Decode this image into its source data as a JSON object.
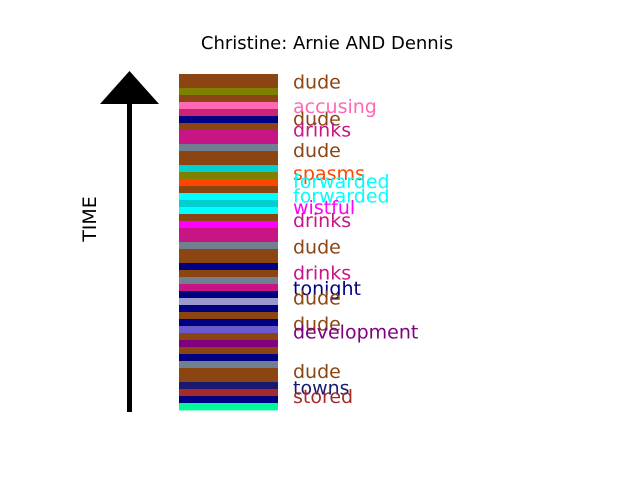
{
  "chart_data": {
    "type": "bar",
    "title": "Christine: Arnie AND Dennis",
    "ylabel": "TIME",
    "stripes": [
      {
        "color": "#8B4513"
      },
      {
        "color": "#8B4513"
      },
      {
        "color": "#808000"
      },
      {
        "color": "#8B4513"
      },
      {
        "color": "#FF69B4"
      },
      {
        "color": "#CC2277"
      },
      {
        "color": "#000080"
      },
      {
        "color": "#8B4513"
      },
      {
        "color": "#C71585"
      },
      {
        "color": "#C71585"
      },
      {
        "color": "#708090"
      },
      {
        "color": "#8B4513"
      },
      {
        "color": "#8B4513"
      },
      {
        "color": "#00CED1"
      },
      {
        "color": "#808000"
      },
      {
        "color": "#FF4500"
      },
      {
        "color": "#8B4513"
      },
      {
        "color": "#00FFFF"
      },
      {
        "color": "#00CED1"
      },
      {
        "color": "#00FFFF"
      },
      {
        "color": "#8B4513"
      },
      {
        "color": "#FF00FF"
      },
      {
        "color": "#C71585"
      },
      {
        "color": "#C71585"
      },
      {
        "color": "#708090"
      },
      {
        "color": "#8B4513"
      },
      {
        "color": "#8B4513"
      },
      {
        "color": "#000080"
      },
      {
        "color": "#8B4513"
      },
      {
        "color": "#708090"
      },
      {
        "color": "#C71585"
      },
      {
        "color": "#000080"
      },
      {
        "color": "#9999CC"
      },
      {
        "color": "#000080"
      },
      {
        "color": "#8B4513"
      },
      {
        "color": "#000080"
      },
      {
        "color": "#6A5ACD"
      },
      {
        "color": "#8B4513"
      },
      {
        "color": "#800080"
      },
      {
        "color": "#8B4513"
      },
      {
        "color": "#000080"
      },
      {
        "color": "#708090"
      },
      {
        "color": "#8B4513"
      },
      {
        "color": "#8B4513"
      },
      {
        "color": "#191970"
      },
      {
        "color": "#A52A2A"
      },
      {
        "color": "#000080"
      },
      {
        "color": "#00FA9A"
      }
    ],
    "labels": [
      {
        "text": "dude",
        "color": "#8B4513",
        "t": 0.978
      },
      {
        "text": "accusing",
        "color": "#FF69B4",
        "t": 0.905
      },
      {
        "text": "dude",
        "color": "#8B4513",
        "t": 0.868
      },
      {
        "text": "drinks",
        "color": "#C71585",
        "t": 0.835
      },
      {
        "text": "dude",
        "color": "#8B4513",
        "t": 0.774
      },
      {
        "text": "spasms",
        "color": "#FF4500",
        "t": 0.706
      },
      {
        "text": "forwarded",
        "color": "#00FFFF",
        "t": 0.682
      },
      {
        "text": "forwarded",
        "color": "#00FFFF",
        "t": 0.638
      },
      {
        "text": "wistful",
        "color": "#FF00FF",
        "t": 0.604
      },
      {
        "text": "drinks",
        "color": "#C71585",
        "t": 0.565
      },
      {
        "text": "dude",
        "color": "#8B4513",
        "t": 0.486
      },
      {
        "text": "drinks",
        "color": "#C71585",
        "t": 0.409
      },
      {
        "text": "tonight",
        "color": "#000080",
        "t": 0.363
      },
      {
        "text": "dude",
        "color": "#8B4513",
        "t": 0.335
      },
      {
        "text": "dude",
        "color": "#8B4513",
        "t": 0.258
      },
      {
        "text": "development",
        "color": "#800080",
        "t": 0.234
      },
      {
        "text": "dude",
        "color": "#8B4513",
        "t": 0.116
      },
      {
        "text": "towns",
        "color": "#191970",
        "t": 0.067
      },
      {
        "text": "stored",
        "color": "#A52A2A",
        "t": 0.042
      }
    ]
  }
}
